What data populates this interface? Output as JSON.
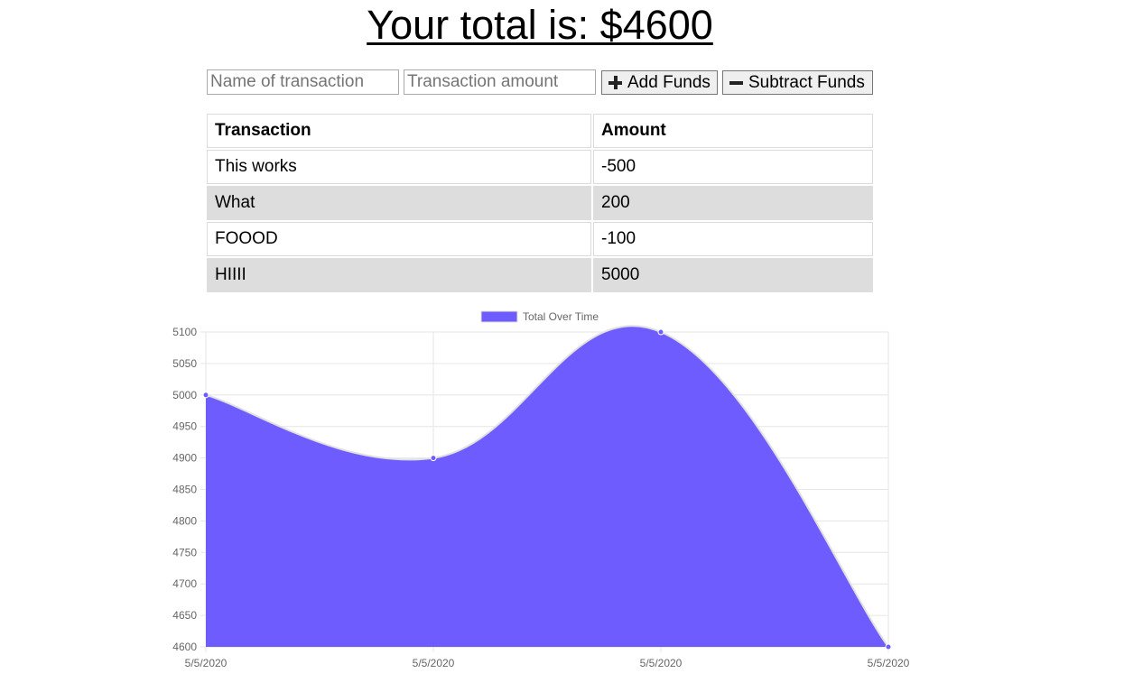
{
  "header": {
    "total_text": "Your total is: $4600"
  },
  "form": {
    "name_placeholder": "Name of transaction",
    "amount_placeholder": "Transaction amount",
    "add_label": "Add Funds",
    "subtract_label": "Subtract Funds",
    "add_icon": "plus-icon",
    "subtract_icon": "minus-icon"
  },
  "table": {
    "headers": [
      "Transaction",
      "Amount"
    ],
    "rows": [
      [
        "This works",
        "-500"
      ],
      [
        "What",
        "200"
      ],
      [
        "FOOOD",
        "-100"
      ],
      [
        "HIIII",
        "5000"
      ]
    ]
  },
  "chart_data": {
    "type": "area",
    "x": [
      "5/5/2020",
      "5/5/2020",
      "5/5/2020",
      "5/5/2020"
    ],
    "series": [
      {
        "name": "Total Over Time",
        "values": [
          5000,
          4900,
          5100,
          4600
        ],
        "color": "#6f5cff"
      }
    ],
    "ylim": [
      4600,
      5100
    ],
    "yticks": [
      5100,
      5050,
      5000,
      4950,
      4900,
      4850,
      4800,
      4750,
      4700,
      4650,
      4600
    ],
    "grid": true,
    "legend": "top-center",
    "title": "",
    "xlabel": "",
    "ylabel": ""
  },
  "colors": {
    "fill": "#6f5cff",
    "line": "#e0e0e0",
    "grid": "#e6e6e6",
    "row_alt": "#dddddd"
  }
}
